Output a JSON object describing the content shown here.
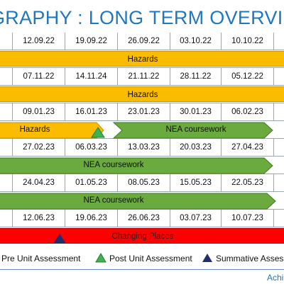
{
  "title": "GRAPHY : LONG TERM OVERVIEW",
  "rows": [
    {
      "dates": [
        "12.09.22",
        "19.09.22",
        "26.09.22",
        "03.10.22",
        "10.10.22"
      ]
    },
    {
      "dates": [
        "07.11.22",
        "14.11.24",
        "21.11.22",
        "28.11.22",
        "05.12.22"
      ]
    },
    {
      "dates": [
        "09.01.23",
        "16.01.23",
        "23.01.23",
        "30.01.23",
        "06.02.23"
      ]
    },
    {
      "dates": [
        "27.02.23",
        "06.03.23",
        "13.03.23",
        "20.03.23",
        "27.04.23"
      ]
    },
    {
      "dates": [
        "24.04.23",
        "01.05.23",
        "08.05.23",
        "15.05.23",
        "22.05.23"
      ]
    },
    {
      "dates": [
        "12.06.23",
        "19.06.23",
        "26.06.23",
        "03.07.23",
        "10.07.23"
      ]
    }
  ],
  "bars": {
    "row1": "Hazards",
    "row2": "Hazards",
    "row3a": "Hazards",
    "row3b": "NEA coursework",
    "row4": "NEA coursework",
    "row5": "NEA coursework",
    "row6": "Changing Places"
  },
  "legend": {
    "pre": "Pre Unit Assessment",
    "post": "Post Unit Assessment",
    "summative": "Summative Assess"
  },
  "colors": {
    "pre": "#c00000",
    "post": "#3fb34f",
    "summative": "#1f2f6b"
  },
  "footer": "Achie"
}
